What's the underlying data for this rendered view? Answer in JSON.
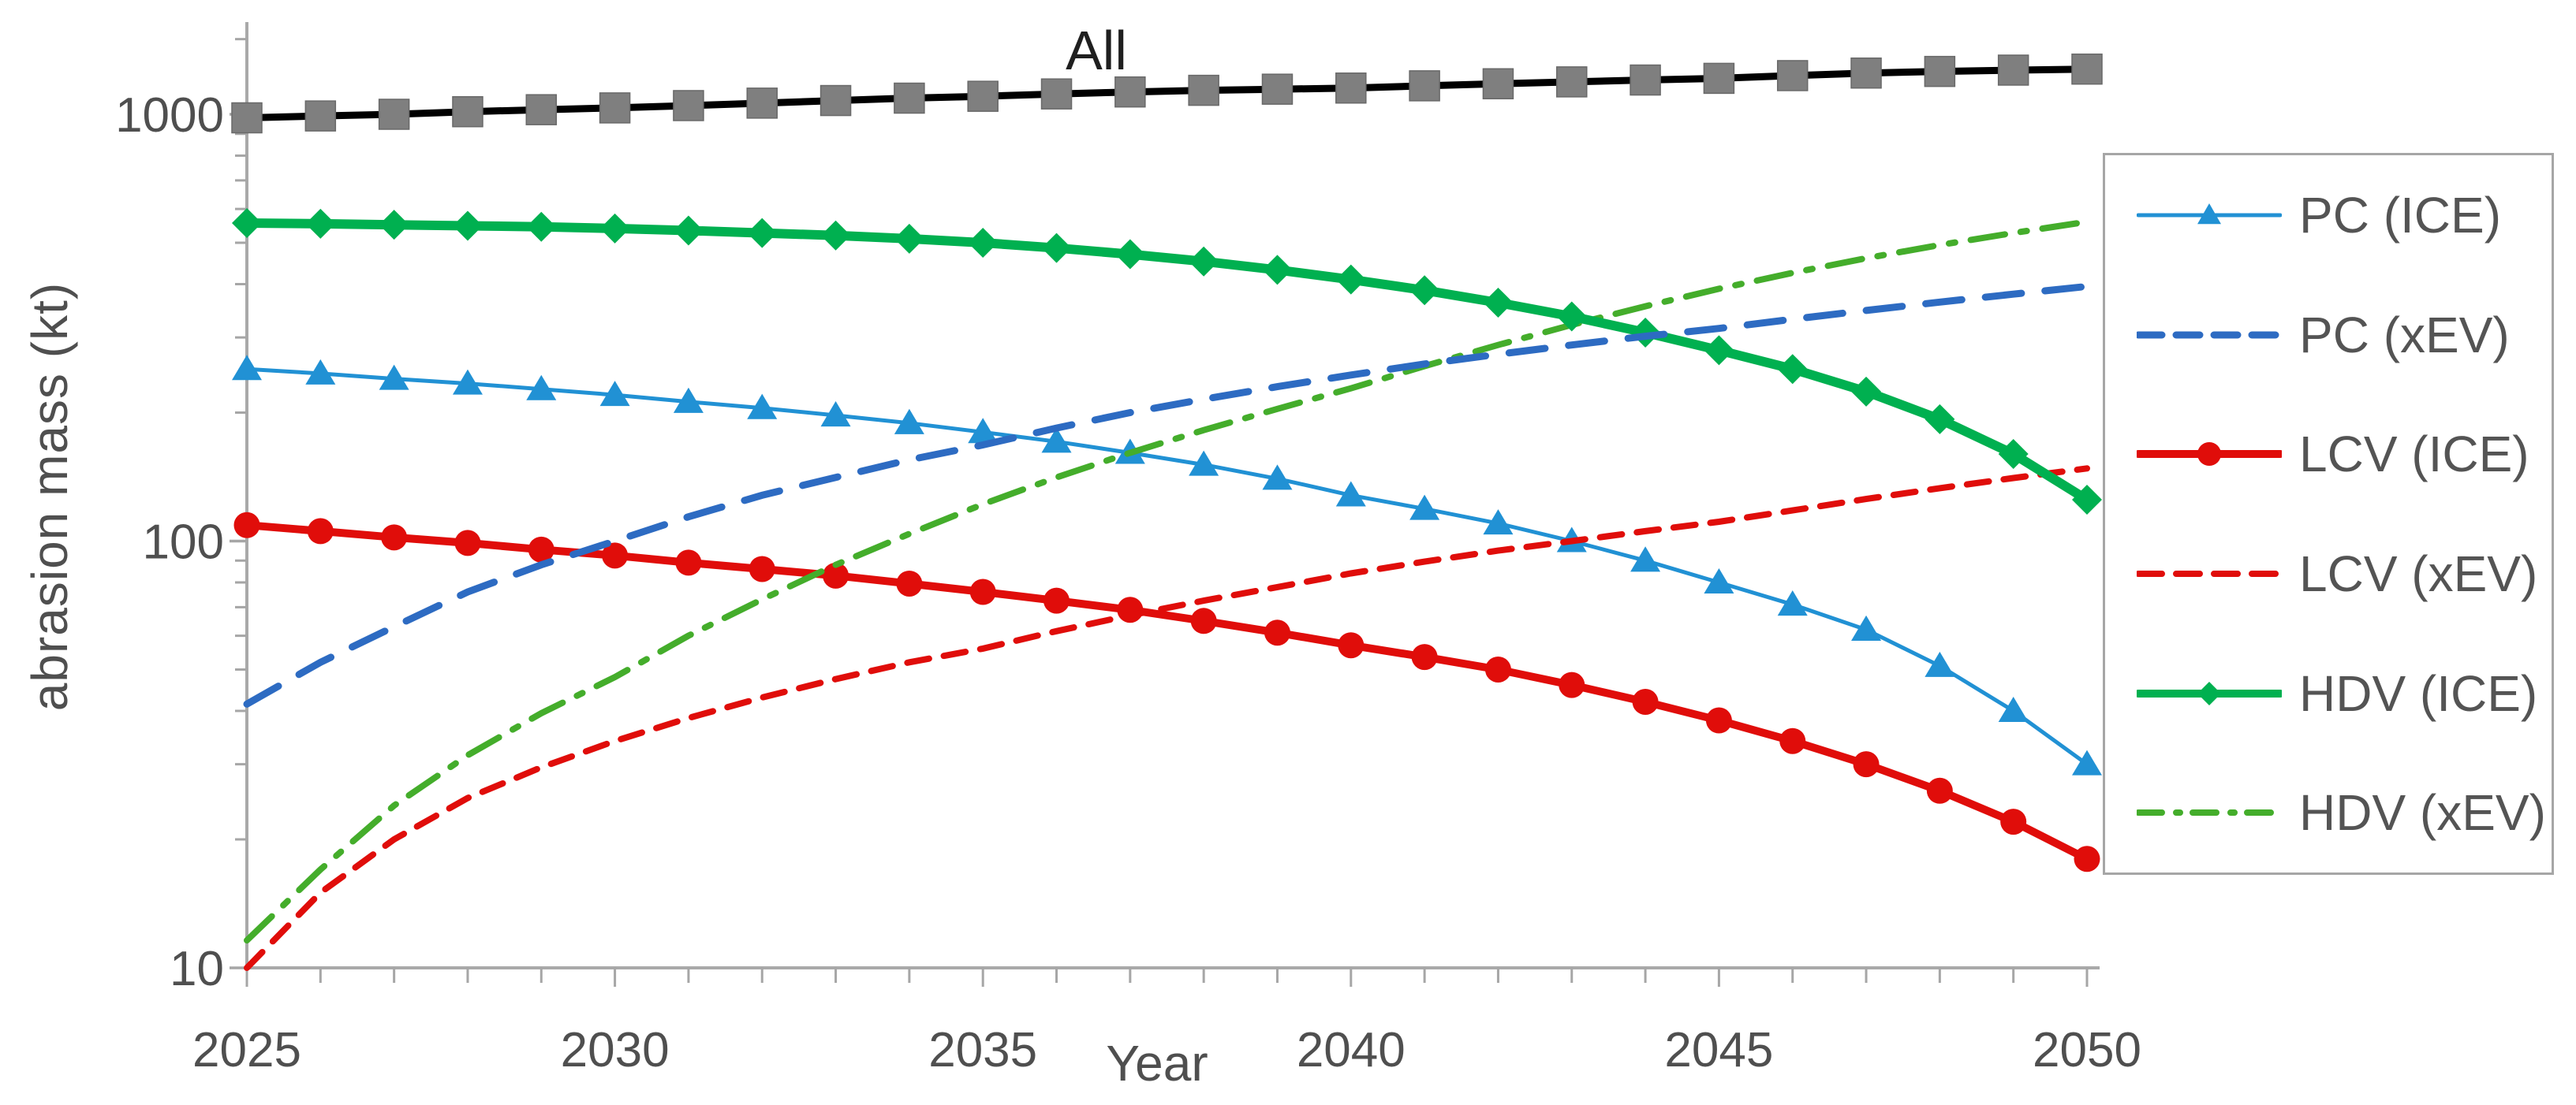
{
  "chart": {
    "annotation": "All",
    "axis_color": "#a9a9a9",
    "tick_color": "#a6a6a6",
    "text_color": "#4f4f4f",
    "legend_border_color": "#a6a6a6",
    "background": "#ffffff"
  },
  "chart_data": {
    "type": "line",
    "title": "",
    "xlabel": "Year",
    "ylabel": "abrasion mass (kt)",
    "y_scale": "log",
    "x_range": [
      2025,
      2050
    ],
    "y_range": [
      10,
      1500
    ],
    "x_ticks_labeled": [
      2025,
      2030,
      2035,
      2040,
      2045,
      2050
    ],
    "y_ticks_labeled": [
      10,
      100,
      1000
    ],
    "y_ticks_minor": [
      20,
      30,
      40,
      50,
      60,
      70,
      80,
      90,
      200,
      300,
      400,
      500,
      600,
      700,
      800,
      900,
      1500
    ],
    "grid": false,
    "legend_position": "right",
    "legend_labels": [
      "PC (ICE)",
      "PC (xEV)",
      "LCV (ICE)",
      "LCV (xEV)",
      "HDV (ICE)",
      "HDV (xEV)"
    ],
    "years": [
      2025,
      2026,
      2027,
      2028,
      2029,
      2030,
      2031,
      2032,
      2033,
      2034,
      2035,
      2036,
      2037,
      2038,
      2039,
      2040,
      2041,
      2042,
      2043,
      2044,
      2045,
      2046,
      2047,
      2048,
      2049,
      2050
    ],
    "series": [
      {
        "name": "All",
        "color": "#000000",
        "line": "solid",
        "width": 9,
        "marker": "square",
        "marker_size": 38,
        "marker_color": "#7f7f7f",
        "marker_stroke": "#696969",
        "annotated": true,
        "values": [
          981,
          991,
          1000,
          1014,
          1025,
          1035,
          1048,
          1062,
          1077,
          1091,
          1102,
          1116,
          1128,
          1138,
          1145,
          1152,
          1166,
          1179,
          1191,
          1203,
          1214,
          1232,
          1249,
          1260,
          1269,
          1276
        ]
      },
      {
        "name": "PC (ICE)",
        "color": "#2191d4",
        "line": "solid",
        "width": 5,
        "marker": "triangle",
        "marker_size": 36,
        "marker_color": "#2191d4",
        "values": [
          253,
          247,
          240,
          234,
          227,
          220,
          212,
          205,
          197,
          189,
          180,
          171,
          161,
          151,
          140,
          128,
          119,
          110,
          100,
          90,
          80,
          71,
          62,
          51,
          40,
          30
        ]
      },
      {
        "name": "LCV (ICE)",
        "color": "#e00d0a",
        "line": "solid",
        "width": 10,
        "marker": "circle",
        "marker_size": 33,
        "marker_color": "#e00d0a",
        "values": [
          109,
          105.5,
          102,
          99,
          95.5,
          92.5,
          89,
          86,
          83,
          79.5,
          76,
          72.5,
          69,
          65,
          61,
          57,
          53.5,
          50,
          46,
          42,
          38,
          34,
          30,
          26,
          22,
          18
        ]
      },
      {
        "name": "HDV (xEV)",
        "color": "#44ad2b",
        "line": "dash-dot",
        "width": 8,
        "marker": null,
        "values": [
          11.6,
          17,
          24,
          31.5,
          39.5,
          48,
          60,
          73,
          88,
          104,
          122,
          141,
          161,
          182,
          204,
          228,
          257,
          288,
          321,
          355,
          390,
          425,
          460,
          494,
          527,
          560
        ]
      },
      {
        "name": "LCV (xEV)",
        "color": "#e00d0a",
        "line": "dash-short",
        "width": 8,
        "marker": null,
        "values": [
          10,
          15,
          20,
          25,
          29.5,
          34,
          38.5,
          43,
          47.5,
          52,
          56,
          61.5,
          67,
          72.5,
          78,
          84,
          89.5,
          95,
          100,
          105.5,
          111,
          118,
          125.5,
          133,
          140.5,
          148
        ]
      },
      {
        "name": "HDV (ICE)",
        "color": "#00b050",
        "line": "solid",
        "width": 12,
        "marker": "diamond",
        "marker_size": 38,
        "marker_color": "#00b050",
        "values": [
          556,
          554,
          551,
          548,
          545,
          540,
          534,
          527,
          520,
          511,
          500,
          486,
          470,
          452,
          432,
          410,
          387,
          362,
          336,
          308,
          280,
          253,
          224,
          193,
          160,
          125
        ]
      },
      {
        "name": "PC (xEV)",
        "color": "#2d6bc2",
        "line": "dash-long",
        "width": 9,
        "marker": null,
        "values": [
          41.5,
          52,
          63,
          76,
          88,
          100,
          114,
          128,
          141,
          155,
          168,
          184,
          200,
          215,
          230,
          245,
          260,
          274,
          288,
          302,
          315,
          331,
          347,
          363,
          379,
          395
        ]
      }
    ]
  }
}
